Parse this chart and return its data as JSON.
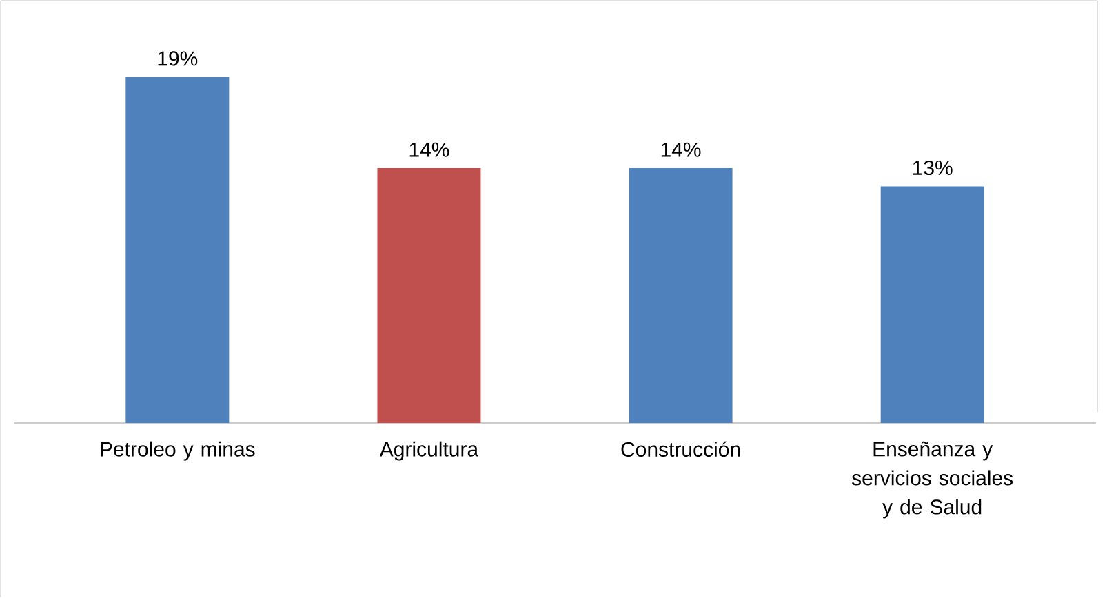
{
  "chart_data": {
    "type": "bar",
    "categories": [
      "Petroleo y minas",
      "Agricultura",
      "Construcción",
      "Enseñanza y servicios sociales y de Salud"
    ],
    "values": [
      19,
      14,
      14,
      13
    ],
    "colors": [
      "#4f81bd",
      "#c0504d",
      "#4f81bd",
      "#4f81bd"
    ],
    "value_labels": [
      "19%",
      "14%",
      "14%",
      "13%"
    ]
  }
}
